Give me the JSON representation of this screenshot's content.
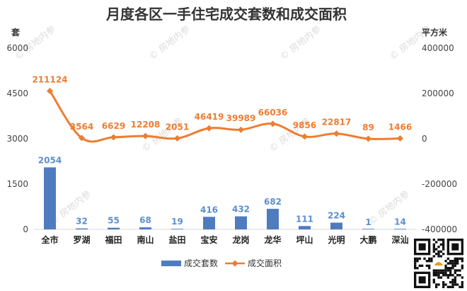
{
  "chart_data": {
    "type": "bar",
    "title": "月度各区一手住宅成交套数和成交面积",
    "left_axis_unit": "套",
    "right_axis_unit": "平方米",
    "categories": [
      "全市",
      "罗湖",
      "福田",
      "南山",
      "盐田",
      "宝安",
      "龙岗",
      "龙华",
      "坪山",
      "光明",
      "大鹏",
      "深汕"
    ],
    "series": [
      {
        "name": "成交套数",
        "type": "bar",
        "axis": "left",
        "color": "#4f7cbf",
        "label_color": "#5b8fd0",
        "values": [
          2054,
          32,
          55,
          68,
          19,
          416,
          432,
          682,
          111,
          224,
          1,
          14
        ]
      },
      {
        "name": "成交面积",
        "type": "line",
        "axis": "right",
        "color": "#ed7d31",
        "label_color": "#ed7d31",
        "values": [
          211124,
          3564,
          6629,
          12208,
          2051,
          46419,
          39989,
          66036,
          9856,
          22817,
          89,
          1466
        ]
      }
    ],
    "left_axis": {
      "min": 0,
      "max": 6000,
      "ticks": [
        0,
        1500,
        3000,
        4500,
        6000
      ]
    },
    "right_axis": {
      "min": -400000,
      "max": 400000,
      "ticks": [
        -400000,
        -200000,
        0,
        200000,
        400000
      ]
    },
    "grid": false,
    "legend_position": "bottom",
    "watermark": "房地内参",
    "qr_code": "qr-code-icon"
  }
}
